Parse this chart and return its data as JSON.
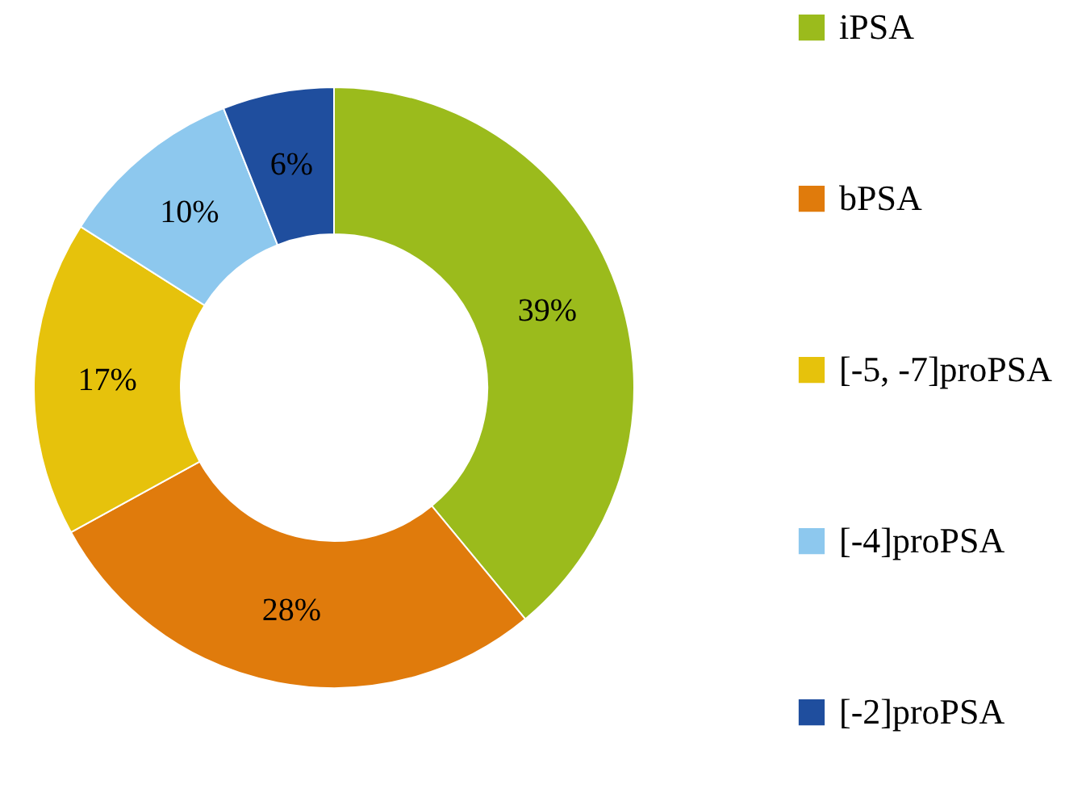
{
  "chart_data": {
    "type": "donut",
    "categories": [
      "iPSA",
      "bPSA",
      "[-5, -7]proPSA",
      "[-4]proPSA",
      "[-2]proPSA"
    ],
    "values": [
      39,
      28,
      17,
      10,
      6
    ],
    "colors": [
      "#9bbb1c",
      "#e07b0c",
      "#e6c20c",
      "#8dc8ee",
      "#1f4e9e"
    ],
    "value_labels": [
      "39%",
      "28%",
      "17%",
      "10%",
      "6%"
    ],
    "legend": "right"
  }
}
